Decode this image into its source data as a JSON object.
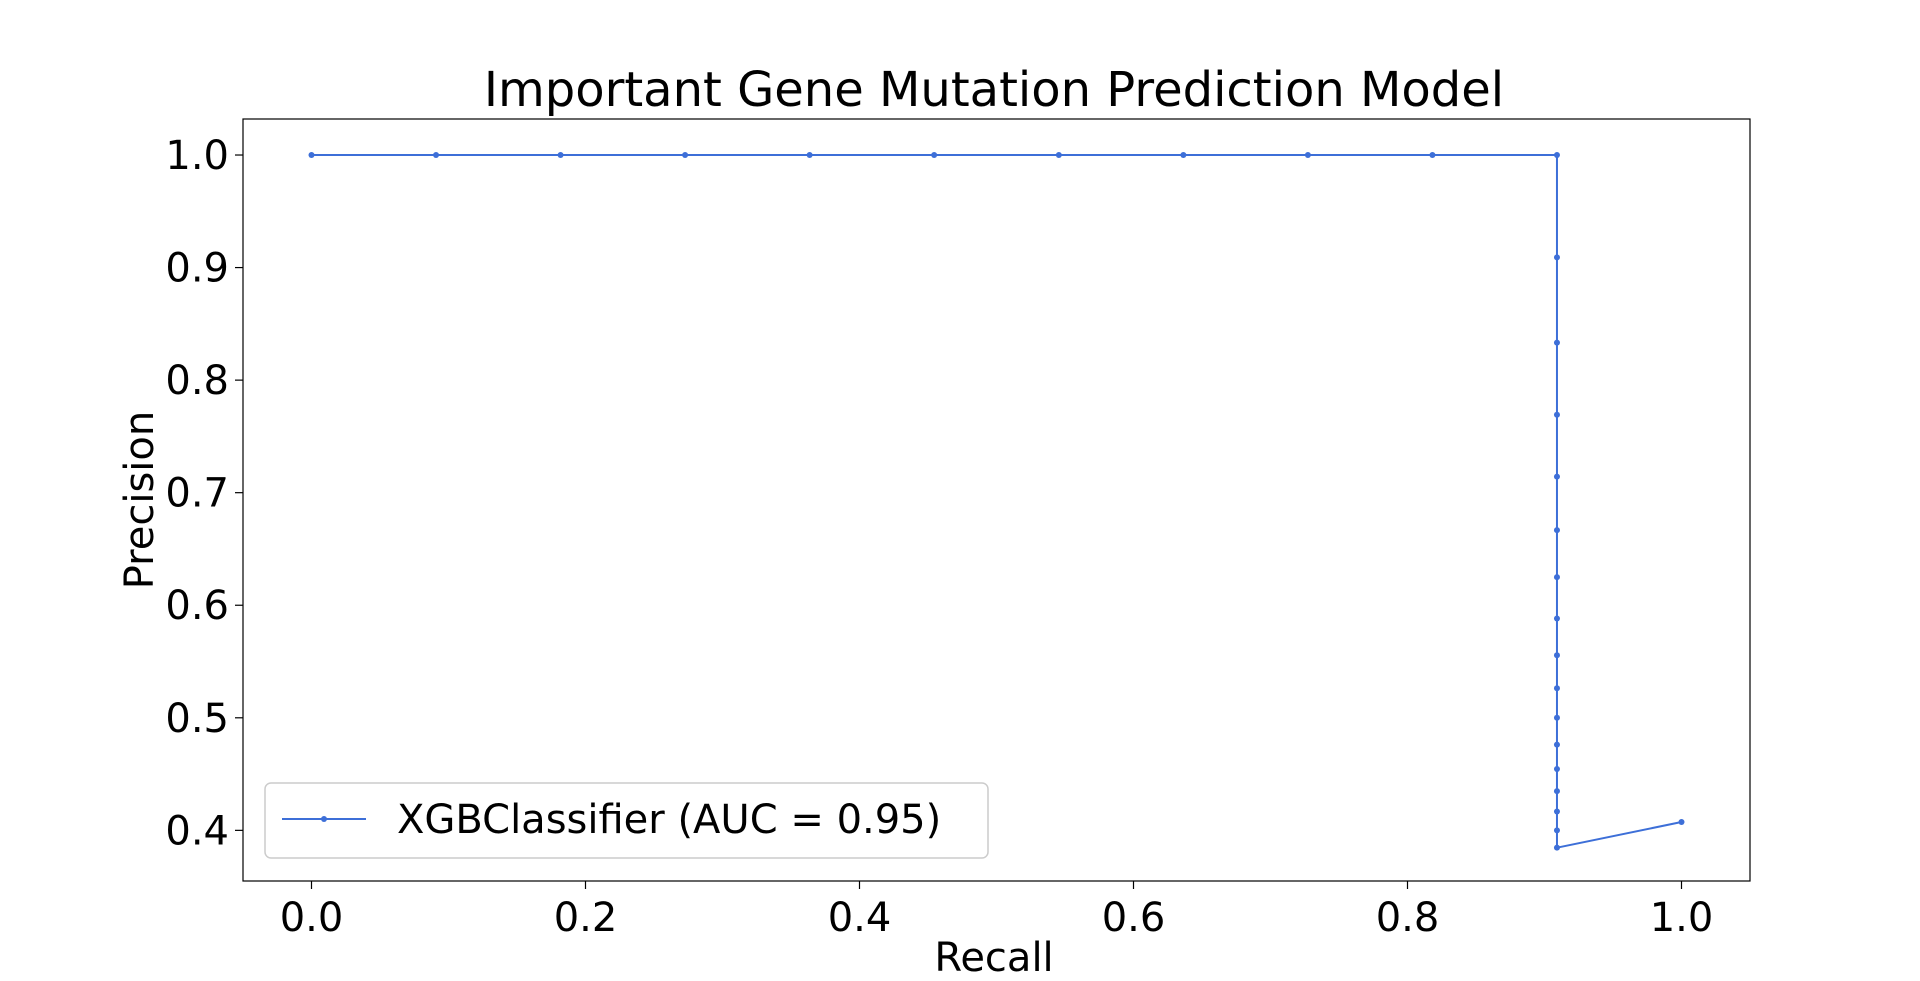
{
  "chart_data": {
    "type": "line",
    "title": "Important Gene Mutation Prediction Model",
    "xlabel": "Recall",
    "ylabel": "Precision",
    "xlim": [
      -0.05,
      1.05
    ],
    "ylim": [
      0.355,
      1.032
    ],
    "xticks": [
      0.0,
      0.2,
      0.4,
      0.6,
      0.8,
      1.0
    ],
    "xtick_labels": [
      "0.0",
      "0.2",
      "0.4",
      "0.6",
      "0.8",
      "1.0"
    ],
    "yticks": [
      0.4,
      0.5,
      0.6,
      0.7,
      0.8,
      0.9,
      1.0
    ],
    "ytick_labels": [
      "0.4",
      "0.5",
      "0.6",
      "0.7",
      "0.8",
      "0.9",
      "1.0"
    ],
    "grid": false,
    "legend_position": "lower-left",
    "series": [
      {
        "name": "XGBClassifier (AUC = 0.95)",
        "color": "#3d6fd8",
        "marker": "dot",
        "x": [
          0.0,
          0.0909,
          0.1818,
          0.2727,
          0.3636,
          0.4545,
          0.5455,
          0.6364,
          0.7273,
          0.8182,
          0.9091,
          0.9091,
          0.9091,
          0.9091,
          0.9091,
          0.9091,
          0.9091,
          0.9091,
          0.9091,
          0.9091,
          0.9091,
          0.9091,
          0.9091,
          0.9091,
          0.9091,
          0.9091,
          0.9091,
          1.0
        ],
        "y": [
          1.0,
          1.0,
          1.0,
          1.0,
          1.0,
          1.0,
          1.0,
          1.0,
          1.0,
          1.0,
          1.0,
          0.9091,
          0.8333,
          0.7692,
          0.7143,
          0.6667,
          0.625,
          0.5882,
          0.5556,
          0.5263,
          0.5,
          0.4762,
          0.4545,
          0.4348,
          0.4167,
          0.4,
          0.3846,
          0.4074
        ]
      }
    ]
  }
}
